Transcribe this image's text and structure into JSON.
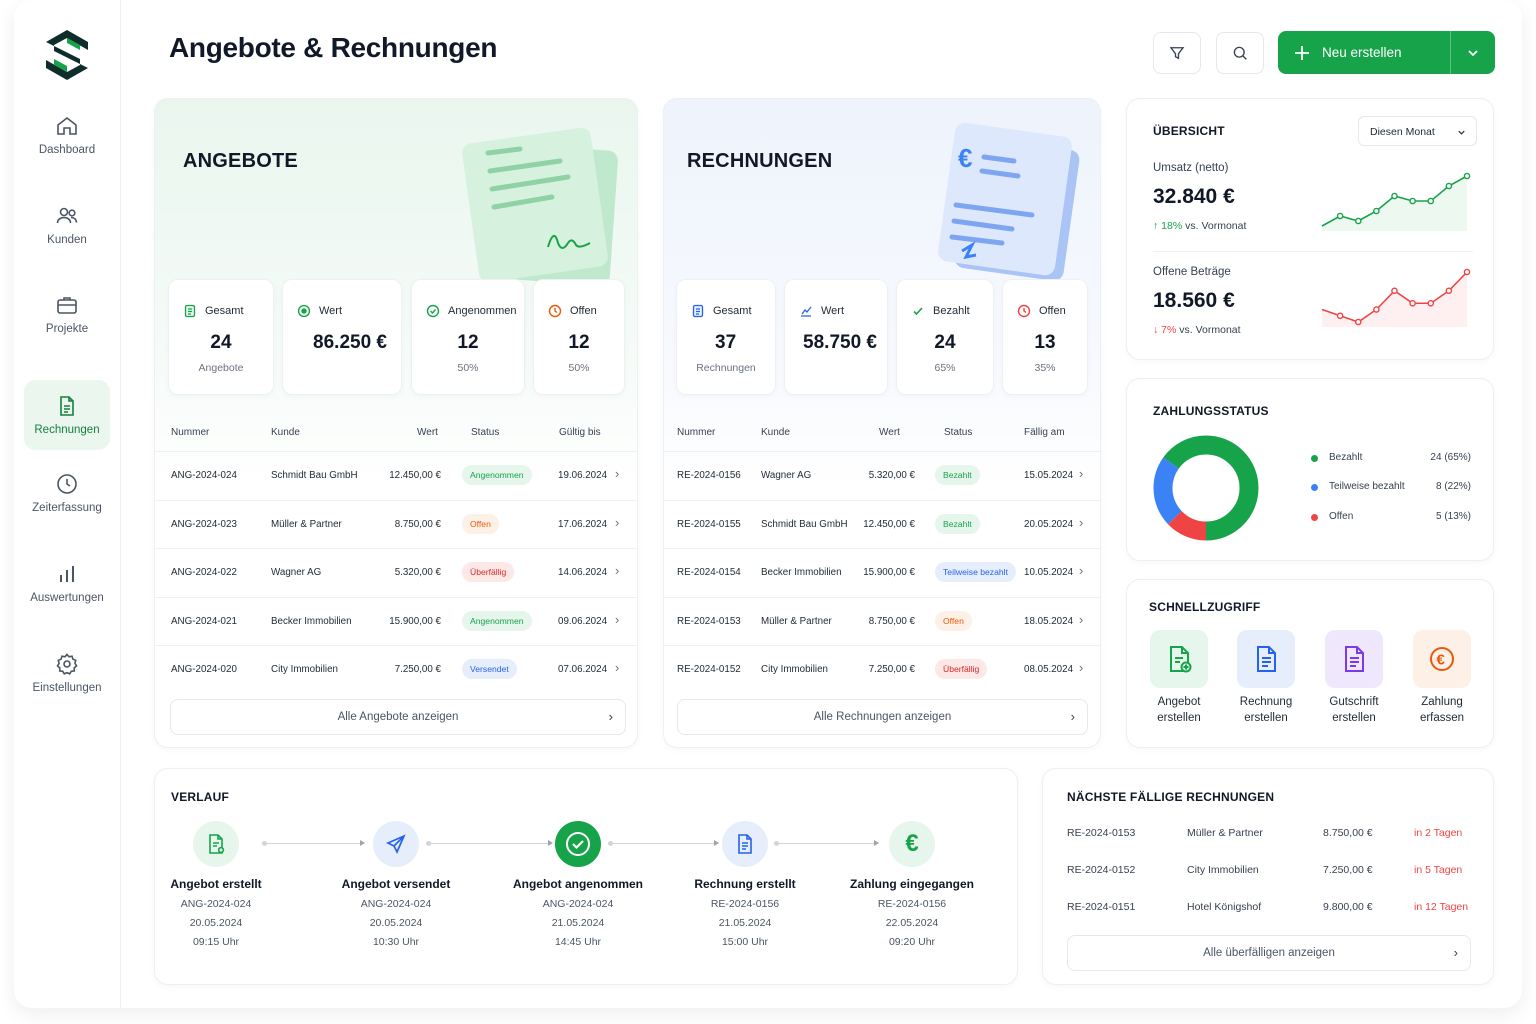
{
  "nav": [
    {
      "label": "Dashboard",
      "icon": "home-icon"
    },
    {
      "label": "Kunden",
      "icon": "users-icon"
    },
    {
      "label": "Projekte",
      "icon": "briefcase-icon"
    },
    {
      "label": "Rechnungen",
      "icon": "document-icon"
    },
    {
      "label": "Zeiterfassung",
      "icon": "clock-icon"
    },
    {
      "label": "Auswertungen",
      "icon": "bar-chart-icon"
    },
    {
      "label": "Einstellungen",
      "icon": "gear-icon"
    }
  ],
  "header": {
    "title": "Angebote & Rechnungen",
    "new_button": "Neu erstellen"
  },
  "angebote": {
    "title": "ANGEBOTE",
    "stats": [
      {
        "label": "Gesamt",
        "value": "24",
        "sub": "Angebote"
      },
      {
        "label": "Wert",
        "value": "86.250 €",
        "sub": ""
      },
      {
        "label": "Angenommen",
        "value": "12",
        "sub": "50%"
      },
      {
        "label": "Offen",
        "value": "12",
        "sub": "50%"
      }
    ],
    "columns": [
      "Nummer",
      "Kunde",
      "Wert",
      "Status",
      "Gültig bis"
    ],
    "rows": [
      {
        "nr": "ANG-2024-024",
        "kunde": "Schmidt Bau GmbH",
        "wert": "12.450,00 €",
        "status": "Angenommen",
        "datum": "19.06.2024"
      },
      {
        "nr": "ANG-2024-023",
        "kunde": "Müller & Partner",
        "wert": "8.750,00 €",
        "status": "Offen",
        "datum": "17.06.2024"
      },
      {
        "nr": "ANG-2024-022",
        "kunde": "Wagner AG",
        "wert": "5.320,00 €",
        "status": "Überfällig",
        "datum": "14.06.2024"
      },
      {
        "nr": "ANG-2024-021",
        "kunde": "Becker Immobilien",
        "wert": "15.900,00 €",
        "status": "Angenommen",
        "datum": "09.06.2024"
      },
      {
        "nr": "ANG-2024-020",
        "kunde": "City Immobilien",
        "wert": "7.250,00 €",
        "status": "Versendet",
        "datum": "07.06.2024"
      }
    ],
    "show_all": "Alle Angebote anzeigen"
  },
  "rechnungen": {
    "title": "RECHNUNGEN",
    "stats": [
      {
        "label": "Gesamt",
        "value": "37",
        "sub": "Rechnungen"
      },
      {
        "label": "Wert",
        "value": "58.750 €",
        "sub": ""
      },
      {
        "label": "Bezahlt",
        "value": "24",
        "sub": "65%"
      },
      {
        "label": "Offen",
        "value": "13",
        "sub": "35%"
      }
    ],
    "columns": [
      "Nummer",
      "Kunde",
      "Wert",
      "Status",
      "Fällig am"
    ],
    "rows": [
      {
        "nr": "RE-2024-0156",
        "kunde": "Wagner AG",
        "wert": "5.320,00 €",
        "status": "Bezahlt",
        "datum": "15.05.2024"
      },
      {
        "nr": "RE-2024-0155",
        "kunde": "Schmidt Bau GmbH",
        "wert": "12.450,00 €",
        "status": "Bezahlt",
        "datum": "20.05.2024"
      },
      {
        "nr": "RE-2024-0154",
        "kunde": "Becker Immobilien",
        "wert": "15.900,00 €",
        "status": "Teilweise bezahlt",
        "datum": "10.05.2024"
      },
      {
        "nr": "RE-2024-0153",
        "kunde": "Müller & Partner",
        "wert": "8.750,00 €",
        "status": "Offen",
        "datum": "18.05.2024"
      },
      {
        "nr": "RE-2024-0152",
        "kunde": "City Immobilien",
        "wert": "7.250,00 €",
        "status": "Überfällig",
        "datum": "08.05.2024"
      }
    ],
    "show_all": "Alle Rechnungen anzeigen"
  },
  "overview": {
    "title": "ÜBERSICHT",
    "period": "Diesen Monat",
    "umsatz_label": "Umsatz (netto)",
    "umsatz_value": "32.840 €",
    "umsatz_delta": "18%",
    "umsatz_delta_suffix": "vs. Vormonat",
    "umsatz_trend": [
      2,
      4,
      3,
      5,
      8,
      7,
      7,
      10,
      12
    ],
    "offen_label": "Offene Beträge",
    "offen_value": "18.560 €",
    "offen_delta": "7%",
    "offen_delta_suffix": "vs. Vormonat",
    "offen_trend": [
      4,
      3,
      2,
      4,
      7,
      5,
      5,
      7,
      10
    ],
    "color_up": "#16a34a",
    "color_down": "#ef4444"
  },
  "zahlungsstatus": {
    "title": "ZAHLUNGSSTATUS",
    "items": [
      {
        "label": "Bezahlt",
        "count": "24 (65%)",
        "value": 65,
        "color": "#16a34a"
      },
      {
        "label": "Teilweise bezahlt",
        "count": "8 (22%)",
        "value": 22,
        "color": "#3b82f6"
      },
      {
        "label": "Offen",
        "count": "5 (13%)",
        "value": 13,
        "color": "#ef4444"
      }
    ]
  },
  "schnellzugriff": {
    "title": "SCHNELLZUGRIFF",
    "items": [
      {
        "line1": "Angebot",
        "line2": "erstellen",
        "icon": "document-plus-icon",
        "color": "#16a34a",
        "bg": "#e6f6ec"
      },
      {
        "line1": "Rechnung",
        "line2": "erstellen",
        "icon": "invoice-icon",
        "color": "#2563eb",
        "bg": "#e6eefc"
      },
      {
        "line1": "Gutschrift",
        "line2": "erstellen",
        "icon": "credit-note-icon",
        "color": "#7c3aed",
        "bg": "#efe8fd"
      },
      {
        "line1": "Zahlung",
        "line2": "erfassen",
        "icon": "euro-icon",
        "color": "#ea580c",
        "bg": "#fdf0e6"
      }
    ]
  },
  "verlauf": {
    "title": "VERLAUF",
    "steps": [
      {
        "title": "Angebot erstellt",
        "ref": "ANG-2024-024",
        "date": "20.05.2024",
        "time": "09:15 Uhr"
      },
      {
        "title": "Angebot versendet",
        "ref": "ANG-2024-024",
        "date": "20.05.2024",
        "time": "10:30 Uhr"
      },
      {
        "title": "Angebot angenommen",
        "ref": "ANG-2024-024",
        "date": "21.05.2024",
        "time": "14:45 Uhr"
      },
      {
        "title": "Rechnung erstellt",
        "ref": "RE-2024-0156",
        "date": "21.05.2024",
        "time": "15:00 Uhr"
      },
      {
        "title": "Zahlung eingegangen",
        "ref": "RE-2024-0156",
        "date": "22.05.2024",
        "time": "09:20 Uhr"
      }
    ]
  },
  "faellig": {
    "title": "NÄCHSTE FÄLLIGE RECHNUNGEN",
    "rows": [
      {
        "nr": "RE-2024-0153",
        "kunde": "Müller & Partner",
        "wert": "8.750,00 €",
        "in": "in 2 Tagen"
      },
      {
        "nr": "RE-2024-0152",
        "kunde": "City Immobilien",
        "wert": "7.250,00 €",
        "in": "in 5 Tagen"
      },
      {
        "nr": "RE-2024-0151",
        "kunde": "Hotel Königshof",
        "wert": "9.800,00 €",
        "in": "in 12 Tagen"
      }
    ],
    "show_all": "Alle überfälligen anzeigen"
  }
}
